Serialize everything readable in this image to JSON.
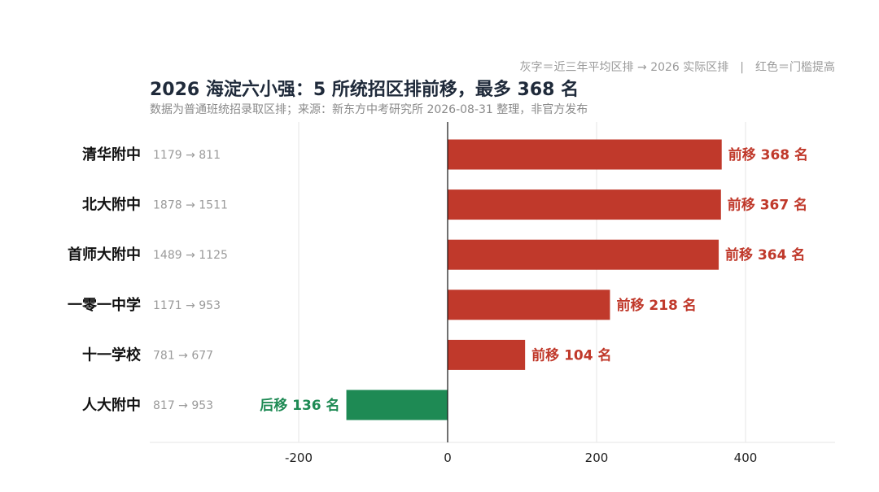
{
  "header": {
    "legend_note": "灰字＝近三年平均区排 → 2026 实际区排　|　红色＝门槛提高",
    "title": "2026 海淀六小强：5 所统招区排前移，最多 368 名",
    "subtitle": "数据为普通班统招录取区排；来源：新东方中考研究所 2026-08-31 整理，非官方发布"
  },
  "colors": {
    "forward": "#c0392b",
    "backward": "#1e8a54",
    "axis": "#111111",
    "grid": "#e6e6e6"
  },
  "chart_data": {
    "type": "bar",
    "orientation": "horizontal",
    "categories": [
      "清华附中",
      "北大附中",
      "首师大附中",
      "一零一中学",
      "十一学校",
      "人大附中"
    ],
    "values": [
      368,
      367,
      364,
      218,
      104,
      -136
    ],
    "range_labels": [
      "1179 → 811",
      "1878 → 1511",
      "1489 → 1125",
      "1171 → 953",
      "781 → 677",
      "817 → 953"
    ],
    "value_labels": [
      "前移 368 名",
      "前移 367 名",
      "前移 364 名",
      "前移 218 名",
      "前移 104 名",
      "后移 136 名"
    ],
    "x_ticks": [
      -200,
      0,
      200,
      400
    ],
    "xlim": [
      -400,
      520
    ],
    "grid": true
  }
}
